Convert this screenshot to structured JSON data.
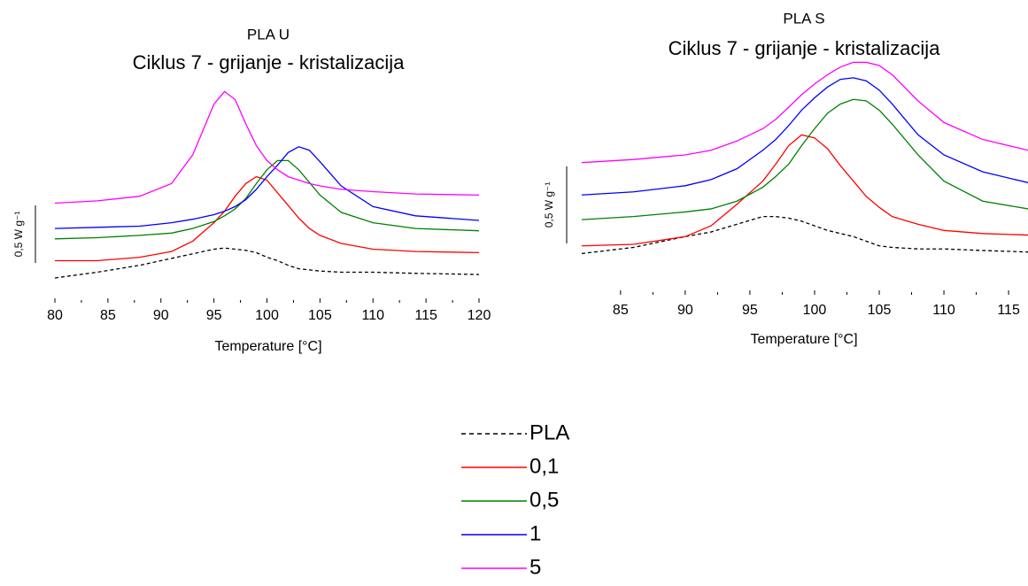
{
  "chart_data": [
    {
      "type": "line",
      "title": "PLA U",
      "subtitle": "Ciklus 7 - grijanje - kristalizacija",
      "x_label": "Temperature [°C]",
      "scale_bar": {
        "value": 0.5,
        "label": "0,5 W g⁻¹"
      },
      "xlim": [
        80,
        120
      ],
      "ylim": [
        0,
        2
      ],
      "xticks": [
        80,
        85,
        90,
        95,
        100,
        105,
        110,
        115,
        120
      ],
      "x": [
        80,
        84,
        88,
        91,
        93,
        95,
        96,
        97,
        98,
        99,
        100,
        101,
        102,
        103,
        104,
        105,
        107,
        110,
        114,
        120
      ],
      "series": [
        {
          "name": "PLA",
          "color": "#000000",
          "dashed": true,
          "values": [
            0.2,
            0.25,
            0.31,
            0.37,
            0.41,
            0.45,
            0.46,
            0.45,
            0.44,
            0.42,
            0.38,
            0.35,
            0.31,
            0.28,
            0.27,
            0.26,
            0.25,
            0.25,
            0.24,
            0.23
          ]
        },
        {
          "name": "0,1",
          "color": "#ff0000",
          "dashed": false,
          "values": [
            0.35,
            0.35,
            0.38,
            0.43,
            0.52,
            0.68,
            0.78,
            0.91,
            1.02,
            1.08,
            1.05,
            0.94,
            0.83,
            0.72,
            0.63,
            0.57,
            0.5,
            0.45,
            0.43,
            0.42
          ]
        },
        {
          "name": "0,5",
          "color": "#008000",
          "dashed": false,
          "values": [
            0.54,
            0.55,
            0.57,
            0.59,
            0.63,
            0.69,
            0.74,
            0.8,
            0.89,
            1.02,
            1.14,
            1.22,
            1.22,
            1.14,
            1.03,
            0.92,
            0.77,
            0.68,
            0.63,
            0.61
          ]
        },
        {
          "name": "1",
          "color": "#0000ff",
          "dashed": false,
          "values": [
            0.63,
            0.64,
            0.65,
            0.68,
            0.71,
            0.75,
            0.78,
            0.82,
            0.88,
            0.97,
            1.08,
            1.18,
            1.29,
            1.34,
            1.31,
            1.21,
            1.0,
            0.82,
            0.74,
            0.7
          ]
        },
        {
          "name": "5",
          "color": "#ff00ff",
          "dashed": false,
          "values": [
            0.85,
            0.87,
            0.91,
            1.02,
            1.27,
            1.71,
            1.82,
            1.75,
            1.54,
            1.35,
            1.22,
            1.14,
            1.08,
            1.05,
            1.02,
            1.0,
            0.97,
            0.95,
            0.93,
            0.92
          ]
        }
      ]
    },
    {
      "type": "line",
      "title": "PLA S",
      "subtitle": "Ciklus 7 - grijanje - kristalizacija",
      "x_label": "Temperature [°C]",
      "scale_bar": {
        "value": 0.5,
        "label": "0,5 W g⁻¹"
      },
      "xlim": [
        82,
        116.5
      ],
      "ylim": [
        0,
        1.55
      ],
      "xticks": [
        85,
        90,
        95,
        100,
        105,
        110,
        115
      ],
      "x": [
        82,
        86,
        90,
        92,
        94,
        96,
        97,
        98,
        99,
        100,
        101,
        102,
        103,
        104,
        105,
        106,
        108,
        110,
        113,
        116.5
      ],
      "series": [
        {
          "name": "PLA",
          "color": "#000000",
          "dashed": true,
          "values": [
            0.25,
            0.29,
            0.36,
            0.39,
            0.44,
            0.49,
            0.49,
            0.48,
            0.46,
            0.43,
            0.4,
            0.38,
            0.36,
            0.33,
            0.3,
            0.29,
            0.28,
            0.28,
            0.27,
            0.26
          ]
        },
        {
          "name": "0,1",
          "color": "#ff0000",
          "dashed": false,
          "values": [
            0.3,
            0.31,
            0.36,
            0.43,
            0.57,
            0.72,
            0.83,
            0.95,
            1.02,
            1.0,
            0.93,
            0.82,
            0.72,
            0.62,
            0.55,
            0.49,
            0.44,
            0.4,
            0.38,
            0.37
          ]
        },
        {
          "name": "0,5",
          "color": "#008000",
          "dashed": false,
          "values": [
            0.47,
            0.49,
            0.52,
            0.54,
            0.59,
            0.68,
            0.75,
            0.83,
            0.95,
            1.06,
            1.16,
            1.22,
            1.25,
            1.24,
            1.18,
            1.09,
            0.89,
            0.72,
            0.59,
            0.54
          ]
        },
        {
          "name": "1",
          "color": "#0000ff",
          "dashed": false,
          "values": [
            0.63,
            0.65,
            0.69,
            0.73,
            0.8,
            0.92,
            0.99,
            1.08,
            1.18,
            1.26,
            1.33,
            1.38,
            1.39,
            1.37,
            1.31,
            1.22,
            1.02,
            0.89,
            0.78,
            0.71
          ]
        },
        {
          "name": "5",
          "color": "#ff00ff",
          "dashed": false,
          "values": [
            0.84,
            0.86,
            0.89,
            0.92,
            0.98,
            1.06,
            1.12,
            1.2,
            1.28,
            1.35,
            1.41,
            1.46,
            1.49,
            1.49,
            1.47,
            1.41,
            1.24,
            1.1,
            0.99,
            0.92
          ]
        }
      ]
    }
  ]
}
